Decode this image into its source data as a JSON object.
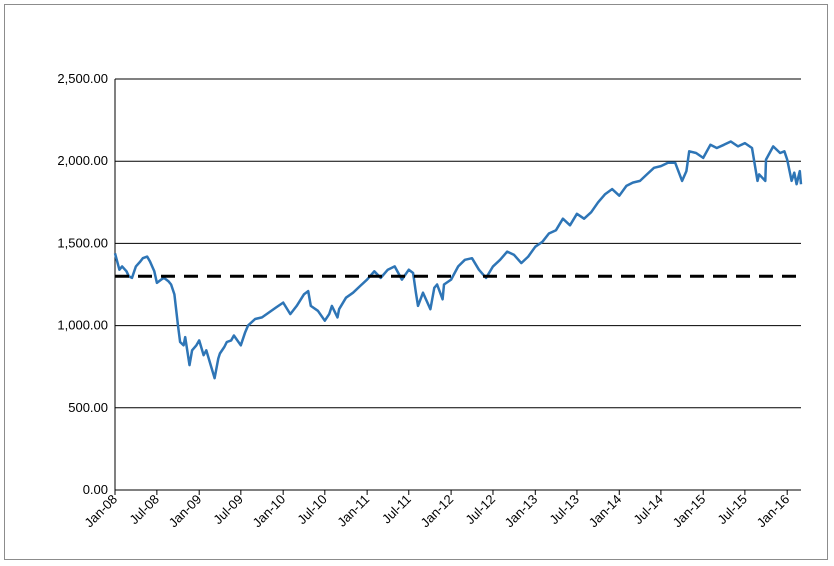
{
  "chart_data": {
    "type": "line",
    "title": "",
    "xlabel": "",
    "ylabel": "",
    "ylim": [
      0,
      2500
    ],
    "xlim": [
      "2008-01",
      "2016-03"
    ],
    "grid": "horizontal",
    "legend": "none",
    "y_ticks": [
      {
        "value": 0,
        "label": "0.00"
      },
      {
        "value": 500,
        "label": "500.00"
      },
      {
        "value": 1000,
        "label": "1,000.00"
      },
      {
        "value": 1500,
        "label": "1,500.00"
      },
      {
        "value": 2000,
        "label": "2,000.00"
      },
      {
        "value": 2500,
        "label": "2,500.00"
      }
    ],
    "x_ticks": [
      {
        "value": "2008-01",
        "label": "Jan-08"
      },
      {
        "value": "2008-07",
        "label": "Jul-08"
      },
      {
        "value": "2009-01",
        "label": "Jan-09"
      },
      {
        "value": "2009-07",
        "label": "Jul-09"
      },
      {
        "value": "2010-01",
        "label": "Jan-10"
      },
      {
        "value": "2010-07",
        "label": "Jul-10"
      },
      {
        "value": "2011-01",
        "label": "Jan-11"
      },
      {
        "value": "2011-07",
        "label": "Jul-11"
      },
      {
        "value": "2012-01",
        "label": "Jan-12"
      },
      {
        "value": "2012-07",
        "label": "Jul-12"
      },
      {
        "value": "2013-01",
        "label": "Jan-13"
      },
      {
        "value": "2013-07",
        "label": "Jul-13"
      },
      {
        "value": "2014-01",
        "label": "Jan-14"
      },
      {
        "value": "2014-07",
        "label": "Jul-14"
      },
      {
        "value": "2015-01",
        "label": "Jan-15"
      },
      {
        "value": "2015-07",
        "label": "Jul-15"
      },
      {
        "value": "2016-01",
        "label": "Jan-16"
      }
    ],
    "series": [
      {
        "color": "#2e75b6",
        "points": [
          [
            "2008-01",
            1440
          ],
          [
            "2008-01-20",
            1340
          ],
          [
            "2008-02",
            1360
          ],
          [
            "2008-02-20",
            1330
          ],
          [
            "2008-03",
            1300
          ],
          [
            "2008-03-15",
            1290
          ],
          [
            "2008-04",
            1360
          ],
          [
            "2008-04-20",
            1390
          ],
          [
            "2008-05",
            1410
          ],
          [
            "2008-05-20",
            1420
          ],
          [
            "2008-06",
            1390
          ],
          [
            "2008-06-20",
            1330
          ],
          [
            "2008-07",
            1260
          ],
          [
            "2008-07-20",
            1280
          ],
          [
            "2008-08",
            1290
          ],
          [
            "2008-08-20",
            1270
          ],
          [
            "2008-09",
            1250
          ],
          [
            "2008-09-15",
            1190
          ],
          [
            "2008-10",
            1000
          ],
          [
            "2008-10-10",
            900
          ],
          [
            "2008-10-25",
            880
          ],
          [
            "2008-11",
            930
          ],
          [
            "2008-11-20",
            760
          ],
          [
            "2008-12",
            850
          ],
          [
            "2008-12-20",
            880
          ],
          [
            "2009-01",
            910
          ],
          [
            "2009-01-20",
            820
          ],
          [
            "2009-02",
            850
          ],
          [
            "2009-02-20",
            760
          ],
          [
            "2009-03-09",
            680
          ],
          [
            "2009-03-25",
            800
          ],
          [
            "2009-04",
            830
          ],
          [
            "2009-04-20",
            870
          ],
          [
            "2009-05",
            900
          ],
          [
            "2009-05-20",
            910
          ],
          [
            "2009-06",
            940
          ],
          [
            "2009-07",
            880
          ],
          [
            "2009-07-20",
            960
          ],
          [
            "2009-08",
            1000
          ],
          [
            "2009-09",
            1040
          ],
          [
            "2009-10",
            1050
          ],
          [
            "2009-11",
            1080
          ],
          [
            "2009-12",
            1110
          ],
          [
            "2010-01",
            1140
          ],
          [
            "2010-02",
            1070
          ],
          [
            "2010-03",
            1120
          ],
          [
            "2010-04",
            1190
          ],
          [
            "2010-04-20",
            1210
          ],
          [
            "2010-05",
            1120
          ],
          [
            "2010-06",
            1090
          ],
          [
            "2010-07",
            1030
          ],
          [
            "2010-07-20",
            1070
          ],
          [
            "2010-08",
            1120
          ],
          [
            "2010-08-25",
            1050
          ],
          [
            "2010-09",
            1100
          ],
          [
            "2010-10",
            1170
          ],
          [
            "2010-11",
            1200
          ],
          [
            "2010-12",
            1240
          ],
          [
            "2011-01",
            1280
          ],
          [
            "2011-02",
            1330
          ],
          [
            "2011-03",
            1290
          ],
          [
            "2011-04",
            1340
          ],
          [
            "2011-05",
            1360
          ],
          [
            "2011-06",
            1280
          ],
          [
            "2011-07",
            1340
          ],
          [
            "2011-07-20",
            1320
          ],
          [
            "2011-08",
            1200
          ],
          [
            "2011-08-10",
            1120
          ],
          [
            "2011-09",
            1200
          ],
          [
            "2011-10-03",
            1100
          ],
          [
            "2011-10-20",
            1230
          ],
          [
            "2011-11",
            1250
          ],
          [
            "2011-11-25",
            1160
          ],
          [
            "2011-12",
            1250
          ],
          [
            "2012-01",
            1280
          ],
          [
            "2012-02",
            1360
          ],
          [
            "2012-03",
            1400
          ],
          [
            "2012-04",
            1410
          ],
          [
            "2012-05",
            1340
          ],
          [
            "2012-06",
            1290
          ],
          [
            "2012-07",
            1360
          ],
          [
            "2012-08",
            1400
          ],
          [
            "2012-09",
            1450
          ],
          [
            "2012-10",
            1430
          ],
          [
            "2012-11",
            1380
          ],
          [
            "2012-12",
            1420
          ],
          [
            "2013-01",
            1480
          ],
          [
            "2013-02",
            1510
          ],
          [
            "2013-03",
            1560
          ],
          [
            "2013-04",
            1580
          ],
          [
            "2013-05",
            1650
          ],
          [
            "2013-06",
            1610
          ],
          [
            "2013-07",
            1680
          ],
          [
            "2013-08",
            1650
          ],
          [
            "2013-09",
            1690
          ],
          [
            "2013-10",
            1750
          ],
          [
            "2013-11",
            1800
          ],
          [
            "2013-12",
            1830
          ],
          [
            "2014-01",
            1790
          ],
          [
            "2014-02",
            1850
          ],
          [
            "2014-03",
            1870
          ],
          [
            "2014-04",
            1880
          ],
          [
            "2014-05",
            1920
          ],
          [
            "2014-06",
            1960
          ],
          [
            "2014-07",
            1970
          ],
          [
            "2014-08",
            1990
          ],
          [
            "2014-09",
            1990
          ],
          [
            "2014-10",
            1880
          ],
          [
            "2014-10-20",
            1940
          ],
          [
            "2014-11",
            2060
          ],
          [
            "2014-12",
            2050
          ],
          [
            "2015-01",
            2020
          ],
          [
            "2015-02",
            2100
          ],
          [
            "2015-03",
            2080
          ],
          [
            "2015-04",
            2100
          ],
          [
            "2015-05",
            2120
          ],
          [
            "2015-06",
            2090
          ],
          [
            "2015-07",
            2110
          ],
          [
            "2015-08",
            2080
          ],
          [
            "2015-08-25",
            1880
          ],
          [
            "2015-09",
            1920
          ],
          [
            "2015-09-28",
            1880
          ],
          [
            "2015-10",
            2010
          ],
          [
            "2015-11",
            2090
          ],
          [
            "2015-12",
            2050
          ],
          [
            "2015-12-20",
            2060
          ],
          [
            "2016-01",
            2010
          ],
          [
            "2016-01-20",
            1880
          ],
          [
            "2016-02",
            1930
          ],
          [
            "2016-02-11",
            1860
          ],
          [
            "2016-02-25",
            1940
          ],
          [
            "2016-03",
            1860
          ]
        ]
      }
    ],
    "reference_line": {
      "value": 1300,
      "color": "#000000",
      "style": "dashed"
    }
  }
}
